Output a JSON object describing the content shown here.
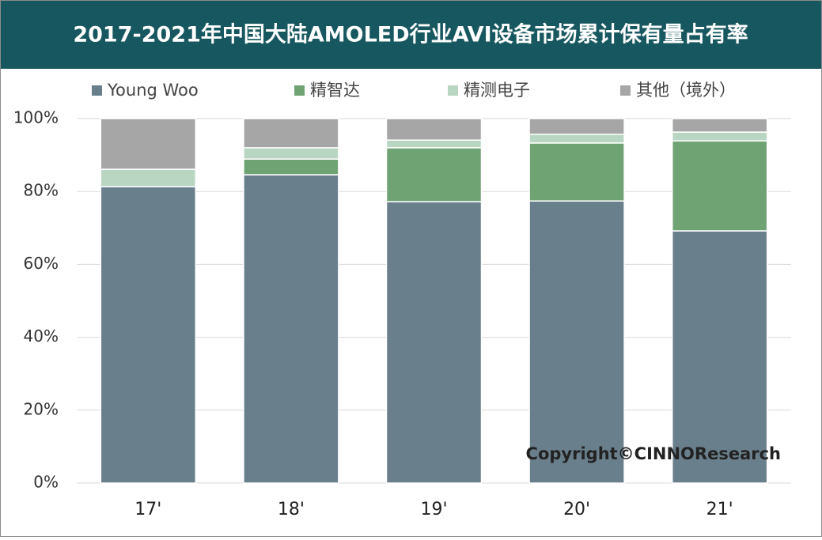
{
  "chart_data": {
    "type": "stacked_bar",
    "title": "2017-2021年中国大陆AMOLED行业AVI设备市场累计保有量占有率",
    "categories": [
      "17'",
      "18'",
      "19'",
      "20'",
      "21'"
    ],
    "series": [
      {
        "name": "Young Woo",
        "color": "#697f8c",
        "values": [
          81.3,
          84.6,
          77.2,
          77.4,
          69.2
        ]
      },
      {
        "name": "精智达",
        "color": "#6fa374",
        "values": [
          0,
          4.3,
          14.8,
          15.9,
          24.7
        ]
      },
      {
        "name": "精测电子",
        "color": "#b9d6c2",
        "values": [
          4.8,
          3.1,
          2.1,
          2.4,
          2.4
        ]
      },
      {
        "name": "其他（境外）",
        "color": "#a6a6a6",
        "values": [
          13.9,
          8.0,
          5.9,
          4.3,
          3.7
        ]
      }
    ],
    "ylim": [
      0,
      100
    ],
    "yticks": [
      {
        "value": 0,
        "label": "0%"
      },
      {
        "value": 20,
        "label": "20%"
      },
      {
        "value": 40,
        "label": "40%"
      },
      {
        "value": 60,
        "label": "60%"
      },
      {
        "value": 80,
        "label": "80%"
      },
      {
        "value": 100,
        "label": "100%"
      }
    ],
    "grid": true,
    "annotation": "Copyright©CINNOResearch"
  }
}
